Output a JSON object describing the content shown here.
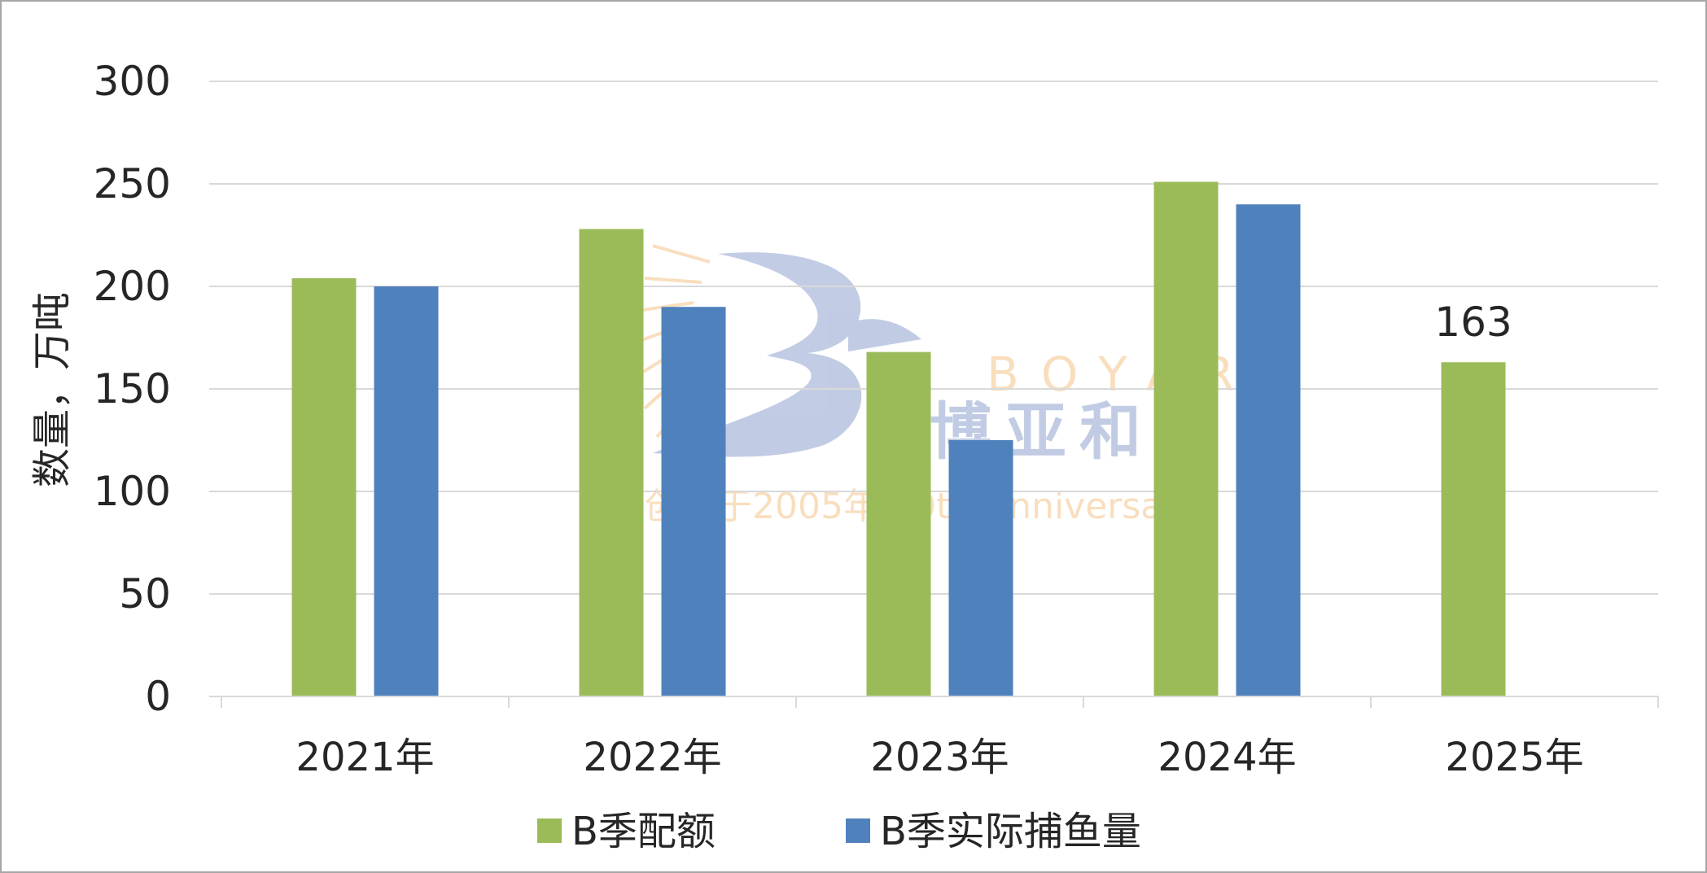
{
  "chart_data": {
    "type": "bar",
    "title": "",
    "xlabel": "",
    "ylabel": "数量，万吨",
    "ylim": [
      0,
      300
    ],
    "yticks": [
      "0",
      "50",
      "100",
      "150",
      "200",
      "250",
      "300"
    ],
    "categories": [
      "2021年",
      "2022年",
      "2023年",
      "2024年",
      "2025年"
    ],
    "series": [
      {
        "name": "B季配额",
        "color": "#9bbb59",
        "values": [
          204,
          228,
          168,
          251,
          163
        ]
      },
      {
        "name": "B季实际捕鱼量",
        "color": "#4f81bd",
        "values": [
          200,
          190,
          125,
          240,
          null
        ]
      }
    ],
    "data_labels": [
      {
        "series": 0,
        "category": 4,
        "text": "163"
      }
    ],
    "grid": true,
    "legend_position": "bottom"
  },
  "watermark": {
    "brand_latin": "BOYAR",
    "brand_cn": "博亚和讯",
    "tagline": "创办于2005年 20th Anniversary"
  }
}
